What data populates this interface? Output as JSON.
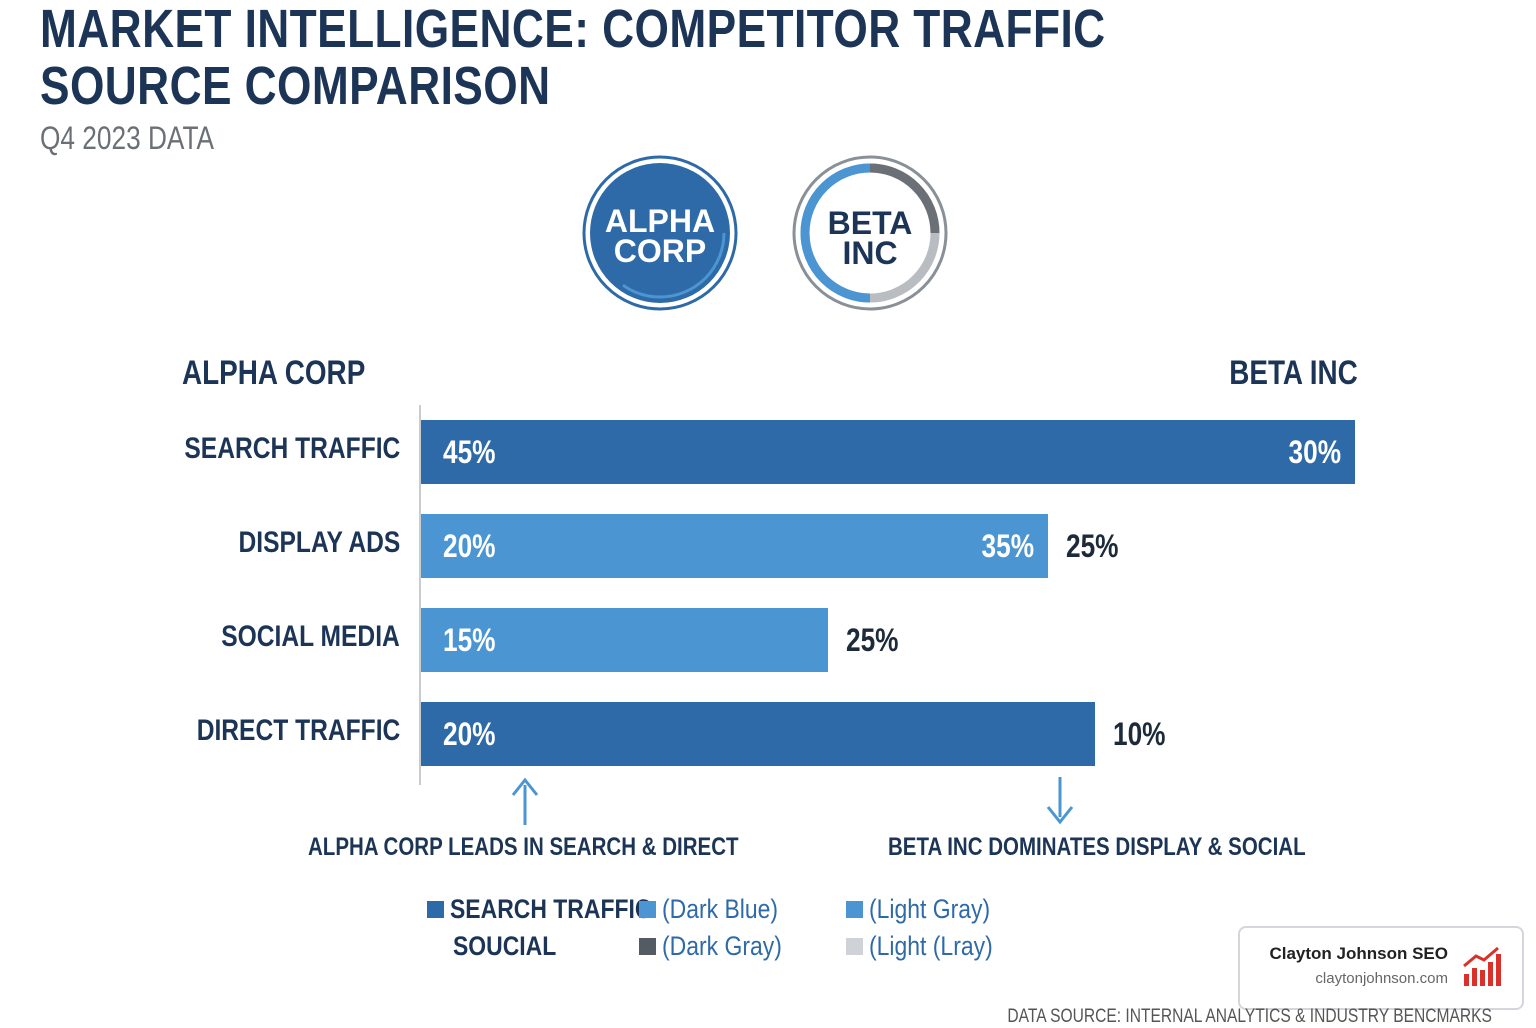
{
  "header": {
    "title_lines": [
      "MARKET INTELLIGENCE: COMPETITOR TRAFFIC",
      "SOURCE COMPARISON"
    ],
    "subtitle": "Q4 2023 DATA"
  },
  "badges": [
    {
      "lines": [
        "ALPHA",
        "CORP"
      ]
    },
    {
      "lines": [
        "BETA",
        "INC"
      ]
    }
  ],
  "columns": [
    "ALPHA CORP",
    "BETA INC"
  ],
  "rows": [
    {
      "label": "SEARCH TRAFFIC",
      "start": "45%",
      "end": "30%"
    },
    {
      "label": "DISPLAY ADS",
      "start": "20%",
      "end": "35%",
      "after": "25%"
    },
    {
      "label": "SOCIAL MEDIA",
      "start": "15%",
      "after": "25%"
    },
    {
      "label": "DIRECT TRAFFIC",
      "start": "20%",
      "after": "10%"
    }
  ],
  "annotations": [
    "ALPHA CORP LEADS IN SEARCH & DIRECT",
    "BETA INC DOMINATES DISPLAY & SOCIAL"
  ],
  "legend": [
    {
      "label": "SEARCH TRAFFIC",
      "color": "#2f6aa8"
    },
    {
      "label": "(Dark Blue)",
      "color": "#4a95d2"
    },
    {
      "label": "(Light Gray)",
      "color": "#4a95d2"
    },
    {
      "label": "SOUCIAL"
    },
    {
      "label": "(Dark Gray)",
      "color": "#555b63"
    },
    {
      "label": "(Light (Lray)",
      "color": "#cfd2d6"
    }
  ],
  "watermark": {
    "name": "Clayton Johnson SEO",
    "url": "claytonjohnson.com"
  },
  "footer": "DATA SOURCE: INTERNAL ANALYTICS & INDUSTRY BENCMARKS"
}
